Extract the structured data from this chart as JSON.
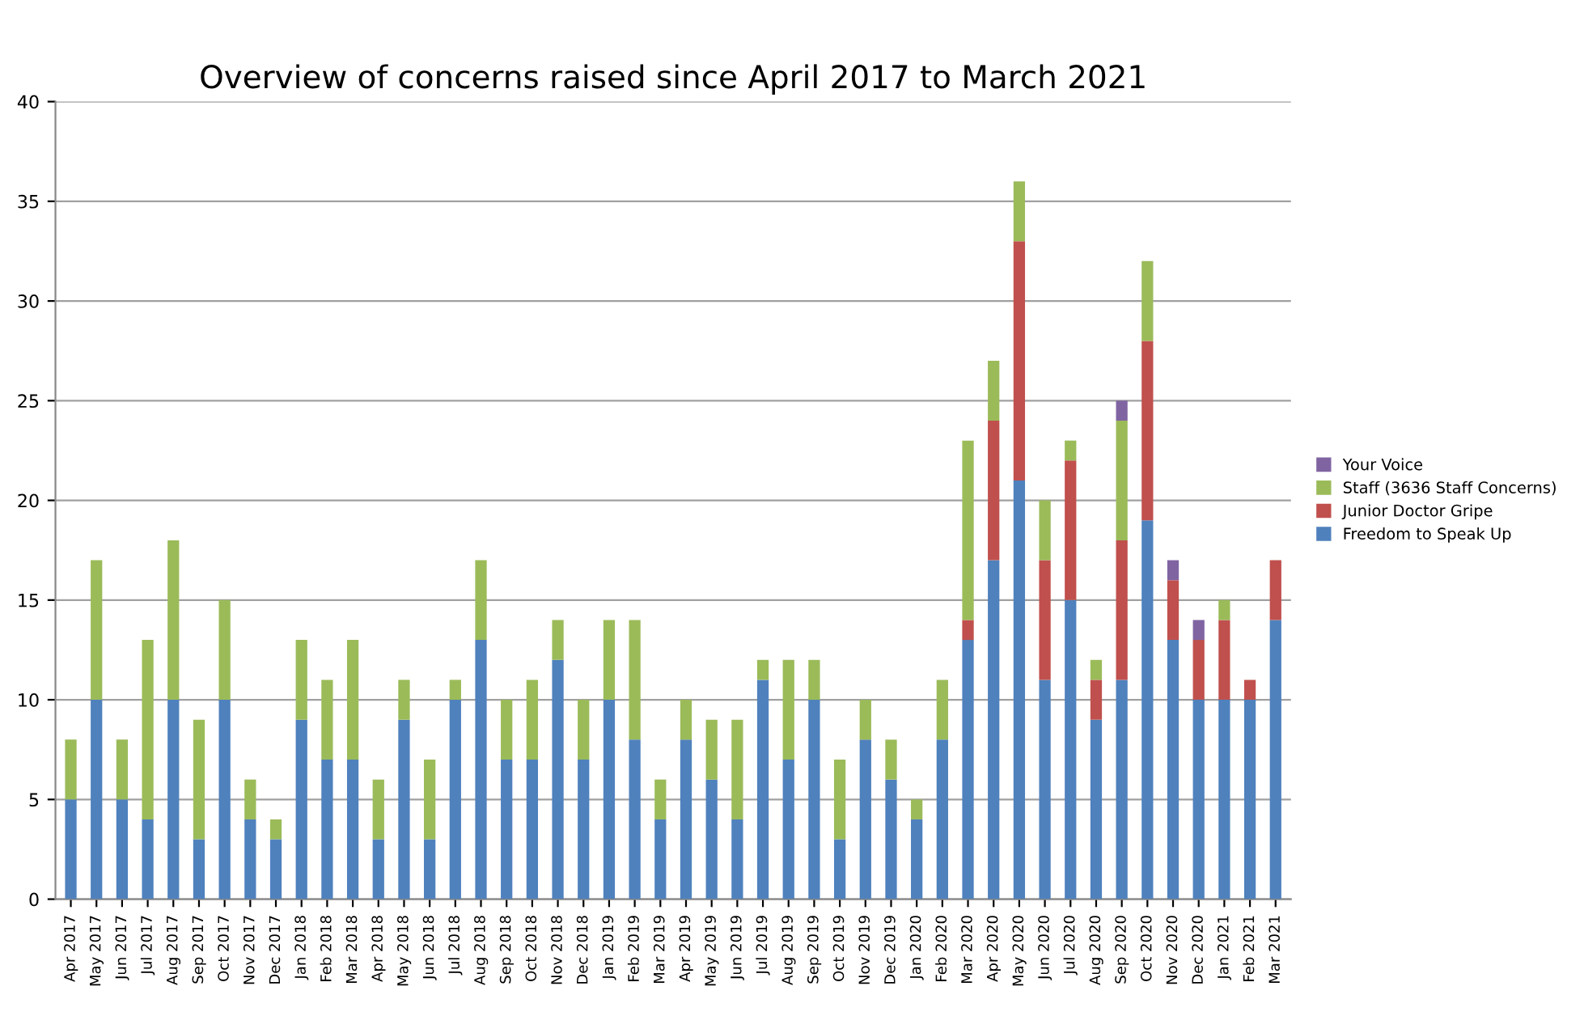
{
  "chart_data": {
    "type": "bar",
    "title": "Overview of concerns raised since April 2017 to March 2021",
    "categories": [
      "Apr 2017",
      "May 2017",
      "Jun 2017",
      "Jul 2017",
      "Aug 2017",
      "Sep 2017",
      "Oct 2017",
      "Nov 2017",
      "Dec 2017",
      "Jan 2018",
      "Feb 2018",
      "Mar 2018",
      "Apr 2018",
      "May 2018",
      "Jun 2018",
      "Jul 2018",
      "Aug 2018",
      "Sep 2018",
      "Oct 2018",
      "Nov 2018",
      "Dec 2018",
      "Jan 2019",
      "Feb 2019",
      "Mar 2019",
      "Apr 2019",
      "May 2019",
      "Jun 2019",
      "Jul 2019",
      "Aug 2019",
      "Sep 2019",
      "Oct 2019",
      "Nov 2019",
      "Dec 2019",
      "Jan 2020",
      "Feb 2020",
      "Mar 2020",
      "Apr 2020",
      "May 2020",
      "Jun 2020",
      "Jul 2020",
      "Aug 2020",
      "Sep 2020",
      "Oct 2020",
      "Nov 2020",
      "Dec 2020",
      "Jan 2021",
      "Feb 2021",
      "Mar 2021"
    ],
    "stacked": true,
    "series": [
      {
        "name": "Freedom to Speak Up",
        "color": "#4f81bd",
        "values": [
          5,
          10,
          5,
          4,
          10,
          3,
          10,
          4,
          3,
          9,
          7,
          7,
          3,
          9,
          3,
          10,
          13,
          7,
          7,
          12,
          7,
          10,
          8,
          4,
          8,
          6,
          4,
          11,
          7,
          10,
          3,
          8,
          6,
          4,
          8,
          13,
          17,
          21,
          11,
          15,
          9,
          11,
          19,
          13,
          10,
          10,
          10,
          14
        ]
      },
      {
        "name": "Junior Doctor Gripe",
        "color": "#c0504d",
        "values": [
          0,
          0,
          0,
          0,
          0,
          0,
          0,
          0,
          0,
          0,
          0,
          0,
          0,
          0,
          0,
          0,
          0,
          0,
          0,
          0,
          0,
          0,
          0,
          0,
          0,
          0,
          0,
          0,
          0,
          0,
          0,
          0,
          0,
          0,
          0,
          1,
          7,
          12,
          6,
          7,
          2,
          7,
          9,
          3,
          3,
          4,
          1,
          3
        ]
      },
      {
        "name": "Staff (3636 Staff Concerns)",
        "color": "#9bbb59",
        "values": [
          3,
          7,
          3,
          9,
          8,
          6,
          5,
          2,
          1,
          4,
          4,
          6,
          3,
          2,
          4,
          1,
          4,
          3,
          4,
          2,
          3,
          4,
          6,
          2,
          2,
          3,
          5,
          1,
          5,
          2,
          4,
          2,
          2,
          1,
          3,
          9,
          3,
          3,
          3,
          1,
          1,
          6,
          4,
          0,
          0,
          1,
          0,
          0
        ]
      },
      {
        "name": "Your Voice",
        "color": "#8064a2",
        "values": [
          0,
          0,
          0,
          0,
          0,
          0,
          0,
          0,
          0,
          0,
          0,
          0,
          0,
          0,
          0,
          0,
          0,
          0,
          0,
          0,
          0,
          0,
          0,
          0,
          0,
          0,
          0,
          0,
          0,
          0,
          0,
          0,
          0,
          0,
          0,
          0,
          0,
          0,
          0,
          0,
          0,
          1,
          0,
          1,
          1,
          0,
          0,
          0
        ]
      }
    ],
    "ylim": [
      0,
      40
    ],
    "yticks": [
      0,
      5,
      10,
      15,
      20,
      25,
      30,
      35,
      40
    ],
    "grid": "y",
    "legend": "right"
  }
}
